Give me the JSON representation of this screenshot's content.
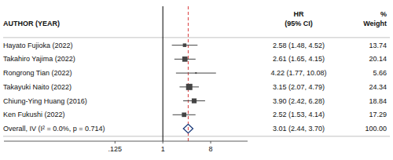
{
  "chart_data": {
    "type": "forest",
    "log": "x",
    "grid": false,
    "tick_labels": "x",
    "xlim": [
      0.001,
      39.810717055349734
    ],
    "xticks": [
      {
        "value": 0.125,
        "label": ".125"
      },
      1,
      8
    ],
    "reference_line": 1,
    "annotations": [
      "AUTHOR (YEAR)",
      "HR",
      "(95% CI)",
      "%",
      "Weight"
    ],
    "categories": [
      "Hayato Fujioka (2022)",
      "Takahiro Yajima (2022)",
      "Rongrong Tian (2022)",
      "Takayuki Naito (2022)",
      "Chiung-Ying Huang (2016)",
      "Ken Fukushi (2022)",
      "Overall, IV (I² = 0.0%, p = 0.714)"
    ],
    "series": [
      {
        "values": [
          2.58,
          2.61,
          4.22,
          3.15,
          3.9,
          2.52,
          3.01
        ],
        "ci_low": [
          1.48,
          1.65,
          1.77,
          2.07,
          2.42,
          1.53,
          2.44
        ],
        "ci_high": [
          4.52,
          4.15,
          10.08,
          4.79,
          6.28,
          4.14,
          3.7
        ],
        "weights": [
          13.74,
          20.14,
          5.66,
          24.34,
          18.84,
          17.29,
          100.0
        ],
        "value_labels": [
          "2.58 (1.48, 4.52)",
          "2.61 (1.65, 4.15)",
          "4.22 (1.77, 10.08)",
          "3.15 (2.07, 4.79)",
          "3.90 (2.42, 6.28)",
          "2.52 (1.53, 4.14)",
          "3.01 (2.44, 3.70)"
        ],
        "weight_labels": [
          "13.74",
          "20.14",
          "5.66",
          "24.34",
          "18.84",
          "17.29",
          "100.00"
        ],
        "colors": [
          "#444444",
          "#444444",
          "#444444",
          "#444444",
          "#444444",
          "#444444",
          "#1a3a7a"
        ]
      }
    ]
  }
}
